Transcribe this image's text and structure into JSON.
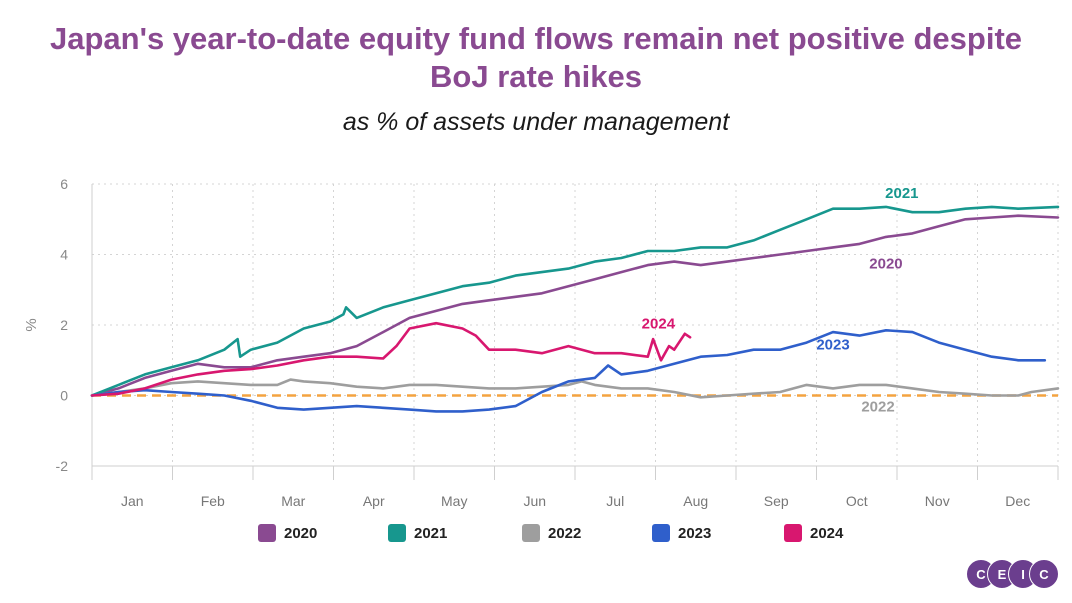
{
  "title_line1": "Japan's year-to-date equity fund flows remain net positive despite",
  "title_line2": "BoJ rate hikes",
  "subtitle": "as % of assets under management",
  "logo": {
    "letters": [
      "C",
      "E",
      "I",
      "C"
    ],
    "color": "#6b3e8e"
  },
  "chart_data": {
    "type": "line",
    "ylabel": "%",
    "ylim": [
      -2,
      6
    ],
    "yticks": [
      -2,
      0,
      2,
      4,
      6
    ],
    "xlim": [
      0,
      365
    ],
    "months": [
      "Jan",
      "Feb",
      "Mar",
      "Apr",
      "May",
      "Jun",
      "Jul",
      "Aug",
      "Sep",
      "Oct",
      "Nov",
      "Dec"
    ],
    "zero_line_color": "#f4a340",
    "series": [
      {
        "name": "2020",
        "color": "#8a4a91",
        "label": "2020",
        "label_at": [
          300,
          3.6
        ],
        "points": [
          [
            0,
            0
          ],
          [
            10,
            0.2
          ],
          [
            20,
            0.5
          ],
          [
            30,
            0.7
          ],
          [
            40,
            0.9
          ],
          [
            50,
            0.8
          ],
          [
            60,
            0.8
          ],
          [
            70,
            1.0
          ],
          [
            80,
            1.1
          ],
          [
            90,
            1.2
          ],
          [
            100,
            1.4
          ],
          [
            110,
            1.8
          ],
          [
            120,
            2.2
          ],
          [
            130,
            2.4
          ],
          [
            140,
            2.6
          ],
          [
            150,
            2.7
          ],
          [
            160,
            2.8
          ],
          [
            170,
            2.9
          ],
          [
            180,
            3.1
          ],
          [
            190,
            3.3
          ],
          [
            200,
            3.5
          ],
          [
            210,
            3.7
          ],
          [
            220,
            3.8
          ],
          [
            230,
            3.7
          ],
          [
            240,
            3.8
          ],
          [
            250,
            3.9
          ],
          [
            260,
            4.0
          ],
          [
            270,
            4.1
          ],
          [
            280,
            4.2
          ],
          [
            290,
            4.3
          ],
          [
            300,
            4.5
          ],
          [
            310,
            4.6
          ],
          [
            320,
            4.8
          ],
          [
            330,
            5.0
          ],
          [
            340,
            5.05
          ],
          [
            350,
            5.1
          ],
          [
            365,
            5.05
          ]
        ]
      },
      {
        "name": "2021",
        "color": "#17978e",
        "label": "2021",
        "label_at": [
          306,
          5.6
        ],
        "points": [
          [
            0,
            0
          ],
          [
            10,
            0.3
          ],
          [
            20,
            0.6
          ],
          [
            30,
            0.8
          ],
          [
            40,
            1.0
          ],
          [
            50,
            1.3
          ],
          [
            55,
            1.6
          ],
          [
            56,
            1.1
          ],
          [
            60,
            1.3
          ],
          [
            70,
            1.5
          ],
          [
            80,
            1.9
          ],
          [
            90,
            2.1
          ],
          [
            95,
            2.3
          ],
          [
            96,
            2.5
          ],
          [
            100,
            2.2
          ],
          [
            110,
            2.5
          ],
          [
            120,
            2.7
          ],
          [
            130,
            2.9
          ],
          [
            140,
            3.1
          ],
          [
            150,
            3.2
          ],
          [
            160,
            3.4
          ],
          [
            170,
            3.5
          ],
          [
            180,
            3.6
          ],
          [
            190,
            3.8
          ],
          [
            200,
            3.9
          ],
          [
            210,
            4.1
          ],
          [
            220,
            4.1
          ],
          [
            230,
            4.2
          ],
          [
            240,
            4.2
          ],
          [
            250,
            4.4
          ],
          [
            260,
            4.7
          ],
          [
            270,
            5.0
          ],
          [
            280,
            5.3
          ],
          [
            290,
            5.3
          ],
          [
            300,
            5.35
          ],
          [
            310,
            5.2
          ],
          [
            320,
            5.2
          ],
          [
            330,
            5.3
          ],
          [
            340,
            5.35
          ],
          [
            350,
            5.3
          ],
          [
            365,
            5.35
          ]
        ]
      },
      {
        "name": "2022",
        "color": "#9e9e9e",
        "label": "2022",
        "label_at": [
          297,
          -0.45
        ],
        "points": [
          [
            0,
            0
          ],
          [
            10,
            0.1
          ],
          [
            20,
            0.2
          ],
          [
            30,
            0.35
          ],
          [
            40,
            0.4
          ],
          [
            50,
            0.35
          ],
          [
            60,
            0.3
          ],
          [
            70,
            0.3
          ],
          [
            75,
            0.45
          ],
          [
            80,
            0.4
          ],
          [
            90,
            0.35
          ],
          [
            100,
            0.25
          ],
          [
            110,
            0.2
          ],
          [
            120,
            0.3
          ],
          [
            130,
            0.3
          ],
          [
            140,
            0.25
          ],
          [
            150,
            0.2
          ],
          [
            160,
            0.2
          ],
          [
            170,
            0.25
          ],
          [
            180,
            0.3
          ],
          [
            185,
            0.4
          ],
          [
            190,
            0.3
          ],
          [
            200,
            0.2
          ],
          [
            210,
            0.2
          ],
          [
            220,
            0.1
          ],
          [
            230,
            -0.05
          ],
          [
            240,
            0.0
          ],
          [
            250,
            0.05
          ],
          [
            260,
            0.1
          ],
          [
            270,
            0.3
          ],
          [
            280,
            0.2
          ],
          [
            290,
            0.3
          ],
          [
            300,
            0.3
          ],
          [
            310,
            0.2
          ],
          [
            320,
            0.1
          ],
          [
            330,
            0.05
          ],
          [
            340,
            0.0
          ],
          [
            350,
            0.0
          ],
          [
            355,
            0.1
          ],
          [
            365,
            0.2
          ]
        ]
      },
      {
        "name": "2023",
        "color": "#2f5fcb",
        "label": "2023",
        "label_at": [
          280,
          1.3
        ],
        "points": [
          [
            0,
            0
          ],
          [
            10,
            0.1
          ],
          [
            20,
            0.15
          ],
          [
            30,
            0.1
          ],
          [
            40,
            0.05
          ],
          [
            50,
            0.0
          ],
          [
            60,
            -0.15
          ],
          [
            70,
            -0.35
          ],
          [
            80,
            -0.4
          ],
          [
            90,
            -0.35
          ],
          [
            100,
            -0.3
          ],
          [
            110,
            -0.35
          ],
          [
            120,
            -0.4
          ],
          [
            130,
            -0.45
          ],
          [
            140,
            -0.45
          ],
          [
            150,
            -0.4
          ],
          [
            160,
            -0.3
          ],
          [
            170,
            0.1
          ],
          [
            180,
            0.4
          ],
          [
            190,
            0.5
          ],
          [
            195,
            0.85
          ],
          [
            200,
            0.6
          ],
          [
            210,
            0.7
          ],
          [
            220,
            0.9
          ],
          [
            230,
            1.1
          ],
          [
            240,
            1.15
          ],
          [
            250,
            1.3
          ],
          [
            260,
            1.3
          ],
          [
            270,
            1.5
          ],
          [
            280,
            1.8
          ],
          [
            290,
            1.7
          ],
          [
            300,
            1.85
          ],
          [
            310,
            1.8
          ],
          [
            320,
            1.5
          ],
          [
            330,
            1.3
          ],
          [
            340,
            1.1
          ],
          [
            350,
            1.0
          ],
          [
            360,
            1.0
          ]
        ]
      },
      {
        "name": "2024",
        "color": "#d8176f",
        "label": "2024",
        "label_at": [
          214,
          1.9
        ],
        "points": [
          [
            0,
            0
          ],
          [
            10,
            0.05
          ],
          [
            20,
            0.2
          ],
          [
            30,
            0.45
          ],
          [
            40,
            0.6
          ],
          [
            50,
            0.7
          ],
          [
            60,
            0.75
          ],
          [
            70,
            0.85
          ],
          [
            80,
            1.0
          ],
          [
            90,
            1.1
          ],
          [
            100,
            1.1
          ],
          [
            110,
            1.05
          ],
          [
            115,
            1.4
          ],
          [
            120,
            1.9
          ],
          [
            130,
            2.05
          ],
          [
            140,
            1.9
          ],
          [
            145,
            1.7
          ],
          [
            150,
            1.3
          ],
          [
            160,
            1.3
          ],
          [
            170,
            1.2
          ],
          [
            180,
            1.4
          ],
          [
            190,
            1.2
          ],
          [
            200,
            1.2
          ],
          [
            210,
            1.1
          ],
          [
            212,
            1.6
          ],
          [
            215,
            1.0
          ],
          [
            218,
            1.4
          ],
          [
            220,
            1.3
          ],
          [
            224,
            1.75
          ],
          [
            226,
            1.65
          ]
        ]
      }
    ]
  }
}
